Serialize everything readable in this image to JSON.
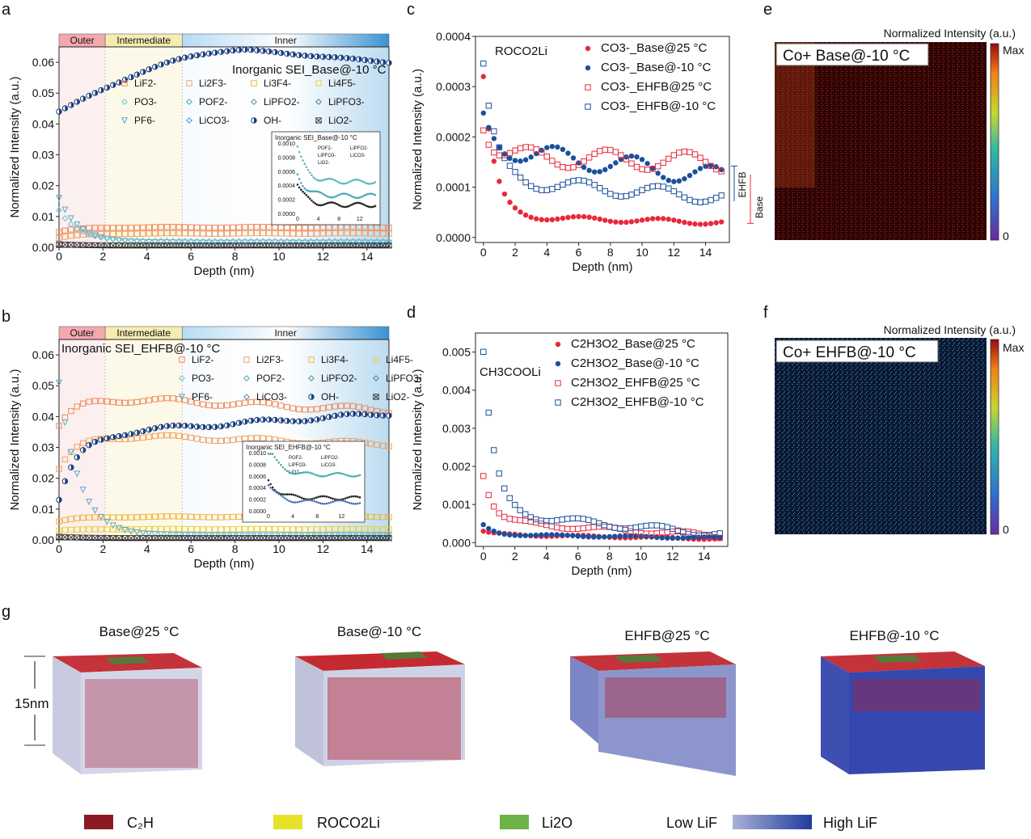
{
  "panel_letters": [
    "a",
    "b",
    "c",
    "d",
    "e",
    "f",
    "g"
  ],
  "regions": [
    "Outer",
    "Intermediate",
    "Inner"
  ],
  "region_bounds_nm": [
    0,
    2.1,
    5.6,
    15
  ],
  "chart_data": [
    {
      "id": "a",
      "type": "scatter",
      "title": "Inorganic SEI_Base@-10 °C",
      "xlabel": "Depth (nm)",
      "ylabel": "Normalized Intensity (a.u.)",
      "xlim": [
        0,
        15
      ],
      "ylim": [
        0,
        0.065
      ],
      "xticks": [
        0,
        2,
        4,
        6,
        8,
        10,
        12,
        14
      ],
      "yticks": [
        0,
        0.01,
        0.02,
        0.03,
        0.04,
        0.05,
        0.06
      ],
      "ytick_labels": [
        "0.00",
        "0.01",
        "0.02",
        "0.03",
        "0.04",
        "0.05",
        "0.06"
      ],
      "legend": [
        "LiF2-",
        "Li2F3-",
        "Li3F4-",
        "Li4F5-",
        "PO3-",
        "POF2-",
        "LiPFO2-",
        "LiPFO3-",
        "PF6-",
        "LiCO3-",
        "OH-",
        "LiO2-"
      ],
      "series_levels": {
        "OH-": {
          "start": 0.044,
          "peak": 0.064,
          "peak_x": 8.5,
          "end": 0.06
        },
        "LiF2-": {
          "start": 0.005,
          "level": 0.0065
        },
        "Li2F3-": {
          "start": 0.003,
          "level": 0.0045
        },
        "PF6-": {
          "start": 0.016,
          "level": 0.0015
        },
        "PO3-": {
          "start": 0.012,
          "level": 0.002
        },
        "LiO2-": {
          "start": 0.001,
          "level": 0.0006
        }
      },
      "inset": {
        "title": "Inorganic SEI_Base@-10 °C",
        "xticks": [
          0,
          4,
          8,
          12
        ],
        "yticks": [
          "0.0000",
          "0.0002",
          "0.0004",
          "0.0006",
          "0.0008",
          "0.0010"
        ],
        "legend": [
          "POF2-",
          "LiPFO2-",
          "LiPFO3-",
          "LiCO3-",
          "LiO2-"
        ]
      }
    },
    {
      "id": "b",
      "type": "scatter",
      "title": "Inorganic SEI_EHFB@-10 °C",
      "xlabel": "Depth (nm)",
      "ylabel": "Normalized Intensity (a.u.)",
      "xlim": [
        0,
        15
      ],
      "ylim": [
        0,
        0.065
      ],
      "xticks": [
        0,
        2,
        4,
        6,
        8,
        10,
        12,
        14
      ],
      "yticks": [
        0,
        0.01,
        0.02,
        0.03,
        0.04,
        0.05,
        0.06
      ],
      "ytick_labels": [
        "0.00",
        "0.01",
        "0.02",
        "0.03",
        "0.04",
        "0.05",
        "0.06"
      ],
      "legend": [
        "LiF2-",
        "Li2F3-",
        "Li3F4-",
        "Li4F5-",
        "PO3-",
        "POF2-",
        "LiPFO2-",
        "LiPFO3-",
        "PF6-",
        "LiCO3-",
        "OH-",
        "LiO2-"
      ],
      "series_levels": {
        "LiF2-": {
          "start": 0.037,
          "level": 0.046,
          "end": 0.042
        },
        "Li2F3-": {
          "start": 0.023,
          "level": 0.034,
          "end": 0.031
        },
        "OH-": {
          "start": 0.013,
          "level": 0.035,
          "end": 0.041
        },
        "Li3F4-": {
          "start": 0.006,
          "level": 0.0075
        },
        "Li4F5-": {
          "start": 0.003,
          "level": 0.0035
        },
        "PF6-": {
          "start": 0.051,
          "level": 0.0015
        },
        "LiO2-": {
          "start": 0.001,
          "level": 0.0006
        }
      },
      "inset": {
        "title": "Inorganic SEI_EHFB@-10 °C",
        "xticks": [
          0,
          4,
          8,
          12
        ],
        "yticks": [
          "0.0000",
          "0.0002",
          "0.0004",
          "0.0006",
          "0.0008",
          "0.0010"
        ],
        "legend": [
          "POF2-",
          "LiPFO2-",
          "LiPFO3-",
          "LiCO3-",
          "LiO2-"
        ]
      }
    },
    {
      "id": "c",
      "type": "scatter",
      "title": "ROCO2Li",
      "xlabel": "Depth (nm)",
      "ylabel": "Normalized Intensity (a.u.)",
      "xlim": [
        -0.5,
        15.5
      ],
      "ylim": [
        -1e-05,
        0.0004
      ],
      "xticks": [
        0,
        2,
        4,
        6,
        8,
        10,
        12,
        14
      ],
      "yticks": [
        0,
        0.0001,
        0.0002,
        0.0003,
        0.0004
      ],
      "ytick_labels": [
        "0.0000",
        "0.0001",
        "0.0002",
        "0.0003",
        "0.0004"
      ],
      "series": [
        {
          "name": "CO3-_Base@25 °C",
          "color": "#e8283c",
          "marker": "filled",
          "start": 0.00032,
          "level": 4e-05,
          "end": 3e-05
        },
        {
          "name": "CO3-_Base@-10 °C",
          "color": "#1a4f9c",
          "marker": "filled",
          "start": 0.00023,
          "level": 0.00017,
          "end": 0.00012
        },
        {
          "name": "CO3-_EHFB@25 °C",
          "color": "#e8283c",
          "marker": "open",
          "start": 0.00023,
          "level": 0.00016,
          "end": 0.00015
        },
        {
          "name": "CO3-_EHFB@-10 °C",
          "color": "#1a4f9c",
          "marker": "open",
          "start": 0.000345,
          "level": 0.00011,
          "end": 8e-05
        }
      ],
      "annotations": [
        "EHFB",
        "Base"
      ]
    },
    {
      "id": "d",
      "type": "scatter",
      "title": "CH3COOLi",
      "xlabel": "Depth (nm)",
      "ylabel": "Normalized Intensity (a.u.)",
      "xlim": [
        -0.5,
        15.5
      ],
      "ylim": [
        -0.0001,
        0.0055
      ],
      "xticks": [
        0,
        2,
        4,
        6,
        8,
        10,
        12,
        14
      ],
      "yticks": [
        0,
        0.001,
        0.002,
        0.003,
        0.004,
        0.005
      ],
      "ytick_labels": [
        "0.000",
        "0.001",
        "0.002",
        "0.003",
        "0.004",
        "0.005"
      ],
      "series": [
        {
          "name": "C2H3O2_Base@25 °C",
          "color": "#e8283c",
          "marker": "filled",
          "start": 0.0003,
          "level": 0.0002,
          "end": 0.0001
        },
        {
          "name": "C2H3O2_Base@-10 °C",
          "color": "#1a4f9c",
          "marker": "filled",
          "start": 0.00045,
          "level": 0.0002,
          "end": 0.00012
        },
        {
          "name": "C2H3O2_EHFB@25 °C",
          "color": "#e8283c",
          "marker": "open",
          "start": 0.0018,
          "level": 0.0005,
          "end": 0.00018
        },
        {
          "name": "C2H3O2_EHFB@-10 °C",
          "color": "#1a4f9c",
          "marker": "open",
          "start": 0.005,
          "level": 0.0007,
          "end": 0.00022
        }
      ]
    }
  ],
  "maps": [
    {
      "id": "e",
      "header": "Normalized Intensity (a.u.)",
      "title": "Co+ Base@-10 °C",
      "scale_max": "Max",
      "scale_min": "0"
    },
    {
      "id": "f",
      "header": "Normalized Intensity (a.u.)",
      "title": "Co+ EHFB@-10 °C",
      "scale_max": "Max",
      "scale_min": "0"
    }
  ],
  "cubes": {
    "labels": [
      "Base@25 °C",
      "Base@-10 °C",
      "EHFB@25 °C",
      "EHFB@-10 °C"
    ],
    "depth_label": "15nm"
  },
  "legend_g": {
    "items": [
      {
        "label": "C₂H",
        "color": "#8b1a22"
      },
      {
        "label": "ROCO2Li",
        "color": "#e6e22a"
      },
      {
        "label": "Li2O",
        "color": "#6db348"
      }
    ],
    "low": "Low LiF",
    "high": "High LiF",
    "gradient": [
      "#aab1d8",
      "#1f3c9c"
    ]
  },
  "colors": {
    "red": "#e8283c",
    "navy": "#1a4f9c",
    "orange": "#f0945c",
    "yellow": "#e8d23a",
    "teal": "#44aaa8"
  }
}
